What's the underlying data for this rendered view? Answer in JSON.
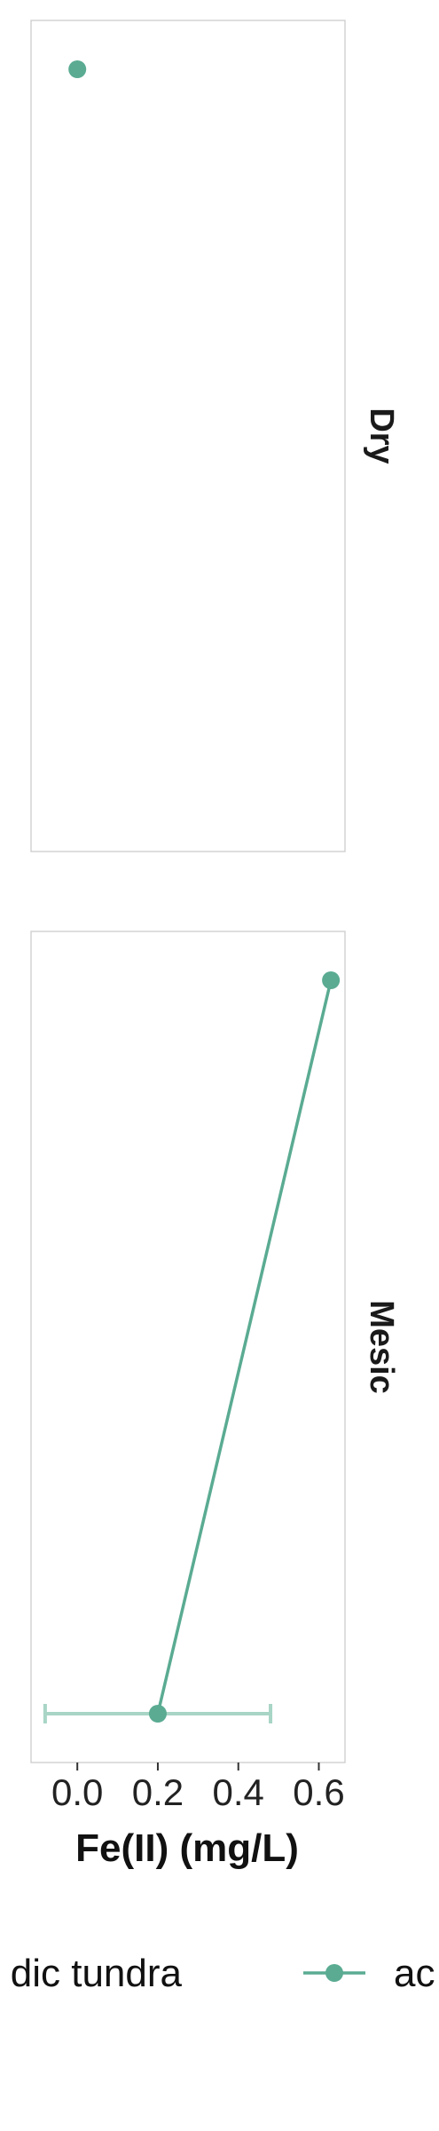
{
  "chart_data": {
    "type": "line",
    "xlabel": "Fe(II) (mg/L)",
    "x_ticks": [
      "0.0",
      "0.2",
      "0.4",
      "0.6"
    ],
    "xlim": [
      -0.115,
      0.665
    ],
    "colors": {
      "series": "#5aab92",
      "error": "#a8d5c5"
    },
    "panels": [
      {
        "label": "Dry",
        "points": [
          {
            "x": 0.0,
            "y": 1
          }
        ],
        "error_bars": []
      },
      {
        "label": "Mesic",
        "points": [
          {
            "x": 0.63,
            "y": 1
          },
          {
            "x": 0.2,
            "y": 0
          }
        ],
        "error_bars": [
          {
            "y": 0,
            "xmin": -0.08,
            "xmax": 0.48
          }
        ]
      }
    ],
    "legend": {
      "position": "bottom",
      "entries": [
        "dic tundra",
        "ac"
      ]
    }
  }
}
